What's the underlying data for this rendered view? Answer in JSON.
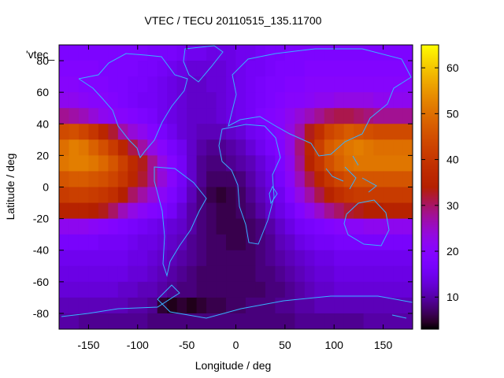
{
  "chart_data": {
    "type": "heatmap",
    "title": "VTEC / TECU 20110515_135.11700",
    "xlabel": "Longitude / deg",
    "ylabel": "Latitude / deg",
    "key_label": "'vtec_",
    "xlim": [
      -180,
      180
    ],
    "ylim": [
      -90,
      90
    ],
    "x_ticks": [
      -150,
      -100,
      -50,
      0,
      50,
      100,
      150
    ],
    "y_ticks": [
      -80,
      -60,
      -40,
      -20,
      0,
      20,
      40,
      60,
      80
    ],
    "x_tick_labels": [
      "-150",
      "-100",
      "-50",
      "0",
      "50",
      "100",
      "150"
    ],
    "y_tick_labels": [
      "-80",
      "-60",
      "-40",
      "-20",
      "0",
      "20",
      "40",
      "60",
      "80"
    ],
    "colorbar": {
      "min": 3,
      "max": 65,
      "ticks": [
        10,
        20,
        30,
        40,
        50,
        60
      ],
      "tick_labels": [
        "10",
        "20",
        "30",
        "40",
        "50",
        "60"
      ]
    },
    "grid": {
      "lon_step": 10,
      "lat_step": 10
    },
    "latitudes": [
      85,
      75,
      65,
      55,
      45,
      35,
      25,
      15,
      5,
      -5,
      -15,
      -25,
      -35,
      -45,
      -55,
      -65,
      -75,
      -85
    ],
    "longitudes": [
      -175,
      -165,
      -155,
      -145,
      -135,
      -125,
      -115,
      -105,
      -95,
      -85,
      -75,
      -65,
      -55,
      -45,
      -35,
      -25,
      -15,
      -5,
      5,
      15,
      25,
      35,
      45,
      55,
      65,
      75,
      85,
      95,
      105,
      115,
      125,
      135,
      145,
      155,
      165,
      175
    ],
    "vtec_rows": [
      [
        18,
        18,
        18,
        18,
        18,
        18,
        18,
        18,
        18,
        17,
        17,
        17,
        16,
        15,
        15,
        14,
        14,
        14,
        15,
        15,
        16,
        17,
        17,
        18,
        18,
        18,
        18,
        18,
        18,
        18,
        18,
        18,
        18,
        18,
        18,
        18
      ],
      [
        19,
        19,
        19,
        19,
        18,
        18,
        18,
        18,
        17,
        17,
        16,
        15,
        14,
        13,
        13,
        13,
        13,
        14,
        15,
        16,
        16,
        17,
        18,
        18,
        18,
        19,
        19,
        19,
        19,
        19,
        19,
        19,
        19,
        19,
        19,
        19
      ],
      [
        20,
        20,
        19,
        19,
        19,
        18,
        18,
        17,
        17,
        16,
        15,
        14,
        13,
        12,
        12,
        13,
        13,
        14,
        15,
        16,
        17,
        18,
        18,
        19,
        19,
        20,
        20,
        20,
        20,
        20,
        20,
        20,
        20,
        20,
        20,
        20
      ],
      [
        22,
        22,
        21,
        20,
        20,
        19,
        18,
        17,
        16,
        16,
        15,
        14,
        13,
        12,
        12,
        12,
        13,
        14,
        15,
        16,
        17,
        18,
        19,
        20,
        20,
        21,
        22,
        22,
        23,
        23,
        23,
        23,
        22,
        22,
        22,
        22
      ],
      [
        28,
        27,
        26,
        24,
        22,
        21,
        20,
        19,
        18,
        17,
        15,
        14,
        13,
        12,
        12,
        12,
        13,
        14,
        15,
        16,
        18,
        19,
        20,
        22,
        24,
        26,
        28,
        30,
        31,
        31,
        30,
        29,
        28,
        28,
        28,
        28
      ],
      [
        44,
        45,
        43,
        40,
        36,
        32,
        27,
        24,
        22,
        19,
        17,
        15,
        13,
        12,
        11,
        11,
        11,
        12,
        13,
        15,
        16,
        18,
        20,
        23,
        27,
        33,
        38,
        43,
        45,
        47,
        46,
        45,
        44,
        44,
        44,
        44
      ],
      [
        50,
        52,
        51,
        48,
        45,
        41,
        36,
        31,
        27,
        23,
        20,
        17,
        15,
        12,
        10,
        9,
        9,
        10,
        11,
        13,
        15,
        17,
        19,
        23,
        29,
        36,
        42,
        47,
        49,
        51,
        52,
        51,
        50,
        50,
        50,
        50
      ],
      [
        51,
        52,
        52,
        51,
        49,
        46,
        42,
        37,
        33,
        28,
        23,
        19,
        16,
        12,
        9,
        8,
        8,
        9,
        10,
        11,
        13,
        15,
        18,
        22,
        28,
        35,
        40,
        45,
        48,
        50,
        51,
        51,
        51,
        51,
        51,
        51
      ],
      [
        46,
        47,
        47,
        46,
        45,
        43,
        40,
        36,
        32,
        28,
        24,
        20,
        16,
        12,
        9,
        7,
        7,
        7,
        8,
        10,
        12,
        14,
        17,
        21,
        26,
        31,
        36,
        40,
        43,
        45,
        46,
        46,
        46,
        46,
        46,
        46
      ],
      [
        41,
        42,
        42,
        41,
        40,
        38,
        34,
        30,
        27,
        24,
        21,
        18,
        15,
        11,
        8,
        6,
        5,
        6,
        7,
        9,
        11,
        13,
        15,
        19,
        23,
        27,
        31,
        35,
        38,
        40,
        41,
        41,
        41,
        41,
        41,
        41
      ],
      [
        35,
        35,
        35,
        34,
        33,
        30,
        26,
        23,
        21,
        19,
        18,
        16,
        13,
        10,
        8,
        7,
        6,
        6,
        7,
        8,
        10,
        12,
        14,
        16,
        19,
        22,
        25,
        28,
        30,
        32,
        33,
        34,
        34,
        35,
        35,
        35
      ],
      [
        22,
        22,
        22,
        21,
        20,
        19,
        18,
        17,
        16,
        15,
        14,
        13,
        12,
        10,
        8,
        7,
        6,
        6,
        6,
        7,
        8,
        10,
        12,
        14,
        16,
        17,
        18,
        19,
        20,
        21,
        21,
        22,
        22,
        22,
        22,
        22
      ],
      [
        17,
        17,
        17,
        17,
        16,
        16,
        16,
        15,
        14,
        14,
        13,
        12,
        11,
        9,
        8,
        7,
        7,
        6,
        6,
        7,
        8,
        9,
        11,
        12,
        14,
        15,
        16,
        16,
        17,
        17,
        17,
        17,
        17,
        17,
        17,
        17
      ],
      [
        15,
        15,
        15,
        15,
        15,
        15,
        15,
        14,
        14,
        13,
        12,
        11,
        10,
        9,
        8,
        7,
        7,
        7,
        7,
        7,
        8,
        9,
        10,
        11,
        12,
        13,
        14,
        14,
        15,
        15,
        15,
        15,
        15,
        15,
        15,
        15
      ],
      [
        14,
        14,
        14,
        14,
        14,
        14,
        14,
        13,
        13,
        12,
        11,
        10,
        9,
        8,
        7,
        7,
        7,
        7,
        7,
        7,
        8,
        8,
        9,
        10,
        11,
        12,
        13,
        13,
        14,
        14,
        14,
        14,
        14,
        14,
        14,
        14
      ],
      [
        13,
        13,
        13,
        13,
        13,
        13,
        12,
        12,
        11,
        11,
        10,
        9,
        8,
        8,
        7,
        7,
        7,
        7,
        7,
        7,
        7,
        8,
        8,
        9,
        10,
        11,
        12,
        12,
        13,
        13,
        13,
        13,
        13,
        13,
        13,
        13
      ],
      [
        11,
        11,
        11,
        11,
        11,
        11,
        11,
        10,
        10,
        9,
        5,
        4,
        5,
        4,
        5,
        6,
        6,
        7,
        7,
        8,
        8,
        8,
        9,
        9,
        10,
        10,
        11,
        11,
        11,
        11,
        11,
        11,
        11,
        11,
        11,
        11
      ],
      [
        10,
        10,
        9,
        9,
        9,
        9,
        9,
        9,
        9,
        8,
        8,
        8,
        8,
        8,
        8,
        8,
        8,
        8,
        8,
        8,
        8,
        8,
        8,
        8,
        9,
        9,
        9,
        9,
        9,
        9,
        9,
        10,
        10,
        10,
        10,
        10
      ]
    ]
  }
}
